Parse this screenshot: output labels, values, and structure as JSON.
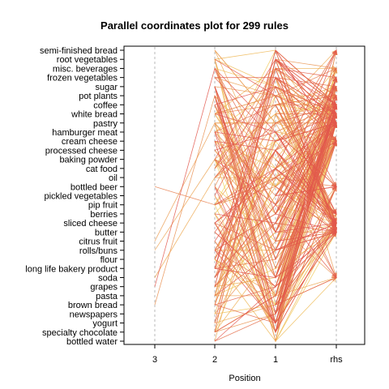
{
  "chart_data": {
    "type": "parallel-coordinates",
    "title": "Parallel coordinates plot for 299 rules",
    "xlabel": "Position",
    "axes": [
      "3",
      "2",
      "1",
      "rhs"
    ],
    "items": [
      "semi-finished bread",
      "root vegetables",
      "misc. beverages",
      "frozen vegetables",
      "sugar",
      "pot plants",
      "coffee",
      "white bread",
      "pastry",
      "hamburger meat",
      "cream cheese",
      "processed cheese",
      "baking powder",
      "cat food",
      "oil",
      "bottled beer",
      "pickled vegetables",
      "pip fruit",
      "berries",
      "sliced cheese",
      "butter",
      "citrus fruit",
      "rolls/buns",
      "flour",
      "long life bakery product",
      "soda",
      "grapes",
      "pasta",
      "brown bread",
      "newspapers",
      "yogurt",
      "specialty chocolate",
      "bottled water"
    ],
    "rule_count": 299,
    "rhs_items": [
      "semi-finished bread",
      "misc. beverages",
      "frozen vegetables",
      "sugar",
      "pot plants",
      "coffee",
      "white bread",
      "pastry",
      "cream cheese",
      "bottled beer",
      "berries",
      "sliced cheese",
      "butter",
      "soda"
    ],
    "color_scale": {
      "low_lift": "#f2d25a",
      "high_lift": "#e2574c"
    },
    "grid": true,
    "grid_style": "dotted"
  }
}
